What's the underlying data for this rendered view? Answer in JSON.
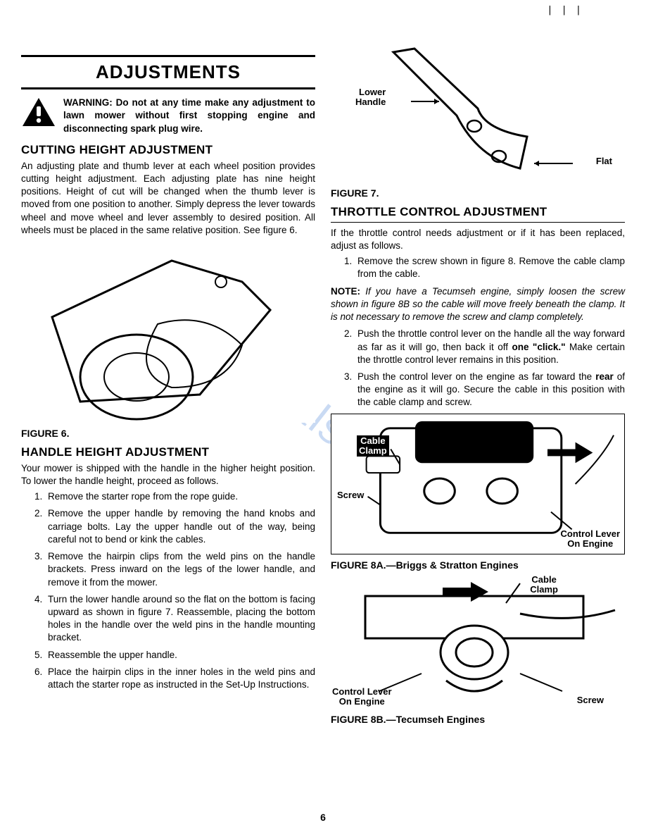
{
  "top_marks": "|   | |",
  "title": "ADJUSTMENTS",
  "warning": "WARNING: Do not at any time make any adjustment to lawn mower without first stopping engine and disconnecting spark plug wire.",
  "watermark": "manualshiv    ",
  "page_number": "6",
  "left": {
    "cutting_heading": "CUTTING HEIGHT ADJUSTMENT",
    "cutting_body": "An adjusting plate and thumb lever at each wheel position provides cutting height adjustment. Each adjusting plate has nine height positions. Height of cut will be changed when the thumb lever is moved from one position to another. Simply depress the lever towards wheel and move wheel and lever assembly to desired position. All wheels must be placed in the same relative position. See figure 6.",
    "fig6_label": "FIGURE 6.",
    "handle_heading": "HANDLE HEIGHT ADJUSTMENT",
    "handle_intro": "Your mower is shipped with the handle in the higher height position. To lower the handle height, proceed as follows.",
    "handle_steps": [
      "Remove the starter rope from the rope guide.",
      "Remove the upper handle by removing the hand knobs and carriage bolts. Lay the upper handle out of the way, being careful not to bend or kink the cables.",
      "Remove the hairpin clips from the weld pins on the handle brackets. Press inward on the legs of the lower handle, and remove it from the mower.",
      "Turn the lower handle around so the flat on the bottom is facing upward as shown in figure 7. Reassemble, placing the bottom holes in the handle over the weld pins in the handle mounting bracket.",
      "Reassemble the upper handle.",
      "Place the hairpin clips in the inner holes in the weld pins and attach the starter rope as instructed in the Set-Up Instructions."
    ]
  },
  "right": {
    "fig7_labels": {
      "lower_handle": "Lower\nHandle",
      "flat": "Flat"
    },
    "fig7_label": "FIGURE 7.",
    "throttle_heading": "THROTTLE CONTROL ADJUSTMENT",
    "throttle_intro": "If the throttle control needs adjustment or if it has been replaced, adjust as follows.",
    "throttle_step1": "Remove the screw shown in figure 8. Remove the cable clamp from the cable.",
    "note_prefix": "NOTE:",
    "note_body": "If you have a Tecumseh engine, simply loosen the screw shown in figure 8B so the cable will move freely beneath the clamp. It is not necessary to remove the screw and clamp completely.",
    "throttle_step2_a": "Push the throttle control lever on the handle all the way forward as far as it will go, then back it off ",
    "throttle_step2_bold": "one \"click.\"",
    "throttle_step2_b": " Make certain the throttle control lever remains in this position.",
    "throttle_step3_a": "Push the control lever on the engine as far toward the ",
    "throttle_step3_bold": "rear",
    "throttle_step3_b": " of the engine as it will go. Secure the cable in this position with the cable clamp and screw.",
    "fig8a_labels": {
      "cable_clamp": "Cable\nClamp",
      "screw": "Screw",
      "control_lever": "Control Lever\nOn Engine"
    },
    "fig8a_label": "FIGURE 8A.—Briggs & Stratton Engines",
    "fig8b_labels": {
      "cable_clamp": "Cable\nClamp",
      "control_lever": "Control Lever\nOn Engine",
      "screw": "Screw"
    },
    "fig8b_label": "FIGURE 8B.—Tecumseh Engines"
  }
}
